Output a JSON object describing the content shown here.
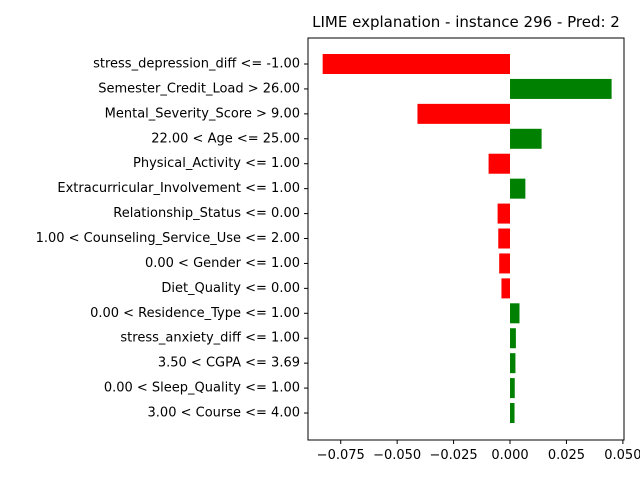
{
  "chart_data": {
    "type": "bar",
    "orientation": "horizontal",
    "title": "LIME explanation - instance 296 - Pred: 2",
    "xlabel": "",
    "ylabel": "",
    "xlim": [
      -0.0895,
      0.0505
    ],
    "xticks": [
      -0.075,
      -0.05,
      -0.025,
      0.0,
      0.025,
      0.05
    ],
    "xtick_labels": [
      "−0.075",
      "−0.050",
      "−0.025",
      "0.000",
      "0.025",
      "0.050"
    ],
    "grid": false,
    "legend": "none",
    "colors": {
      "positive": "#008000",
      "negative": "#ff0000"
    },
    "categories": [
      "stress_depression_diff <= -1.00",
      "Semester_Credit_Load > 26.00",
      "Mental_Severity_Score > 9.00",
      "22.00 < Age <= 25.00",
      "Physical_Activity <= 1.00",
      "Extracurricular_Involvement <= 1.00",
      "Relationship_Status <= 0.00",
      "1.00 < Counseling_Service_Use <= 2.00",
      "0.00 < Gender <= 1.00",
      "Diet_Quality <= 0.00",
      "0.00 < Residence_Type <= 1.00",
      "stress_anxiety_diff <= 1.00",
      "3.50 < CGPA <= 3.69",
      "0.00 < Sleep_Quality <= 1.00",
      "3.00 < Course <= 4.00"
    ],
    "values": [
      -0.083,
      0.045,
      -0.041,
      0.014,
      -0.0095,
      0.0068,
      -0.0055,
      -0.0052,
      -0.0048,
      -0.0038,
      0.0042,
      0.0026,
      0.0024,
      0.0021,
      0.002
    ]
  }
}
